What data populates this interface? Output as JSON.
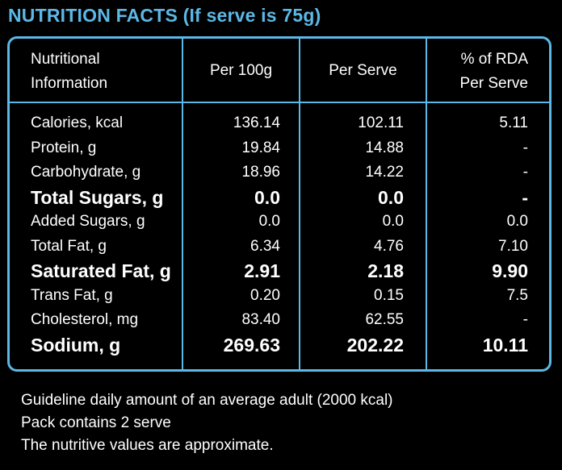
{
  "title": "NUTRITION FACTS (If serve is 75g)",
  "colors": {
    "accent": "#5cb8e6",
    "background": "#000000",
    "text": "#ffffff"
  },
  "headers": {
    "nutrient_line1": "Nutritional",
    "nutrient_line2": "Information",
    "per100": "Per 100g",
    "perServe": "Per Serve",
    "rda_line1": "% of RDA",
    "rda_line2": "Per Serve"
  },
  "rows": [
    {
      "name": "Calories, kcal",
      "per100": "136.14",
      "perServe": "102.11",
      "rda": "5.11",
      "bold": false
    },
    {
      "name": "Protein, g",
      "per100": "19.84",
      "perServe": "14.88",
      "rda": "-",
      "bold": false
    },
    {
      "name": "Carbohydrate, g",
      "per100": "18.96",
      "perServe": "14.22",
      "rda": "-",
      "bold": false
    },
    {
      "name": "Total Sugars, g",
      "per100": "0.0",
      "perServe": "0.0",
      "rda": "-",
      "bold": true
    },
    {
      "name": "Added Sugars, g",
      "per100": "0.0",
      "perServe": "0.0",
      "rda": "0.0",
      "bold": false
    },
    {
      "name": "Total Fat, g",
      "per100": "6.34",
      "perServe": "4.76",
      "rda": "7.10",
      "bold": false
    },
    {
      "name": "Saturated Fat, g",
      "per100": "2.91",
      "perServe": "2.18",
      "rda": "9.90",
      "bold": true
    },
    {
      "name": "Trans Fat, g",
      "per100": "0.20",
      "perServe": "0.15",
      "rda": "7.5",
      "bold": false
    },
    {
      "name": "Cholesterol, mg",
      "per100": "83.40",
      "perServe": "62.55",
      "rda": "-",
      "bold": false
    },
    {
      "name": "Sodium, g",
      "per100": "269.63",
      "perServe": "202.22",
      "rda": "10.11",
      "bold": true
    }
  ],
  "notes": [
    "Guideline daily amount of an average adult (2000 kcal)",
    "Pack contains 2 serve",
    "The nutritive values are approximate."
  ]
}
